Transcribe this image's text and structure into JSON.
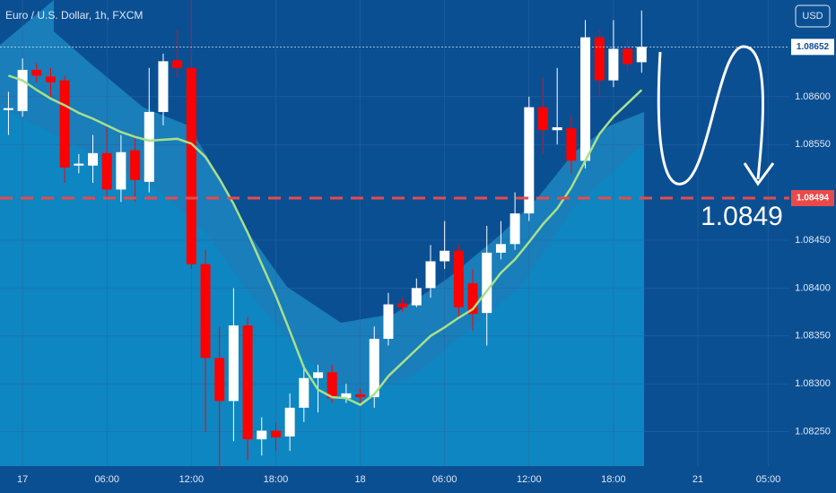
{
  "chart_data": {
    "type": "candlestick",
    "title": "Euro / U.S. Dollar, 1h, FXCM",
    "currency": "USD",
    "x": [
      -1,
      0,
      1,
      2,
      3,
      4,
      5,
      6,
      7,
      8,
      9,
      10,
      11,
      12,
      13,
      14,
      15,
      16,
      17,
      18,
      19,
      20,
      21,
      22,
      23,
      24,
      25,
      26,
      27,
      28,
      29,
      30,
      31,
      32,
      33,
      34,
      35,
      36,
      37,
      38,
      39,
      40,
      41,
      42,
      43,
      44
    ],
    "open": [
      1.08586,
      1.08585,
      1.08628,
      1.08621,
      1.08617,
      1.08528,
      1.08528,
      1.08541,
      1.08503,
      1.08544,
      1.08511,
      1.08584,
      1.08638,
      1.0863,
      1.08425,
      1.08327,
      1.08282,
      1.08361,
      1.08242,
      1.08251,
      1.08245,
      1.08275,
      1.08306,
      1.08312,
      1.08285,
      1.08289,
      1.08286,
      1.08347,
      1.08384,
      1.08382,
      1.084,
      1.08428,
      1.08439,
      1.08405,
      1.08374,
      1.08437,
      1.08446,
      1.08478,
      1.08589,
      1.08565,
      1.08567,
      1.08533,
      1.08662,
      1.08617,
      1.0865,
      1.08636
    ],
    "high": [
      1.08605,
      1.0864,
      1.08635,
      1.0863,
      1.08622,
      1.0854,
      1.0856,
      1.0857,
      1.0856,
      1.0856,
      1.0863,
      1.08645,
      1.0867,
      1.08701,
      1.0844,
      1.0836,
      1.084,
      1.0837,
      1.08265,
      1.0826,
      1.0829,
      1.0832,
      1.0832,
      1.0832,
      1.083,
      1.08295,
      1.0836,
      1.08395,
      1.0839,
      1.0841,
      1.08445,
      1.0847,
      1.08445,
      1.0842,
      1.08465,
      1.0847,
      1.085,
      1.086,
      1.0862,
      1.0863,
      1.0858,
      1.0868,
      1.0867,
      1.0868,
      1.0866,
      1.0869
    ],
    "low": [
      1.0856,
      1.08579,
      1.08615,
      1.086,
      1.0851,
      1.0852,
      1.0851,
      1.08495,
      1.0849,
      1.0849,
      1.085,
      1.0857,
      1.0862,
      1.0842,
      1.0825,
      1.0821,
      1.0824,
      1.0822,
      1.08225,
      1.0823,
      1.0823,
      1.0826,
      1.0827,
      1.0828,
      1.0828,
      1.0828,
      1.08275,
      1.0834,
      1.08375,
      1.0838,
      1.0839,
      1.0842,
      1.0837,
      1.08355,
      1.0834,
      1.0843,
      1.0844,
      1.0847,
      1.0854,
      1.0855,
      1.0852,
      1.08525,
      1.086,
      1.0861,
      1.08625,
      1.08625
    ],
    "close": [
      1.08588,
      1.08628,
      1.08622,
      1.08615,
      1.08526,
      1.0853,
      1.08541,
      1.08503,
      1.08542,
      1.08513,
      1.08584,
      1.08637,
      1.0863,
      1.08425,
      1.08327,
      1.08282,
      1.08361,
      1.08242,
      1.08251,
      1.08244,
      1.08275,
      1.08306,
      1.08312,
      1.08285,
      1.0829,
      1.08286,
      1.08347,
      1.08383,
      1.0838,
      1.084,
      1.08428,
      1.08439,
      1.0838,
      1.08373,
      1.08437,
      1.08446,
      1.08478,
      1.08589,
      1.08565,
      1.08568,
      1.08533,
      1.08662,
      1.08617,
      1.0865,
      1.08634,
      1.08652
    ],
    "up_color": "#ffffff",
    "down_color": "#ff0000",
    "ma": {
      "color": "#a8e08a",
      "values": [
        1.08622,
        1.08617,
        1.08607,
        1.08598,
        1.08591,
        1.08583,
        1.08577,
        1.0857,
        1.08563,
        1.08558,
        1.08554,
        1.08555,
        1.08556,
        1.08551,
        1.08537,
        1.08514,
        1.08488,
        1.08458,
        1.08425,
        1.08392,
        1.08355,
        1.08317,
        1.08294,
        1.08286,
        1.08285,
        1.08278,
        1.08289,
        1.08308,
        1.08322,
        1.08336,
        1.0835,
        1.08359,
        1.08369,
        1.08378,
        1.08397,
        1.08416,
        1.0843,
        1.08448,
        1.08467,
        1.08483,
        1.08505,
        1.08533,
        1.08561,
        1.08579,
        1.08593,
        1.08607
      ]
    },
    "xlim": [
      -1.6,
      54.5
    ],
    "xticks": [
      {
        "value": 0,
        "label": "17"
      },
      {
        "value": 6,
        "label": "06:00"
      },
      {
        "value": 12,
        "label": "12:00"
      },
      {
        "value": 18,
        "label": "18:00"
      },
      {
        "value": 24,
        "label": "18"
      },
      {
        "value": 30,
        "label": "06:00"
      },
      {
        "value": 36,
        "label": "12:00"
      },
      {
        "value": 42,
        "label": "18:00"
      },
      {
        "value": 48,
        "label": "21"
      },
      {
        "value": 53,
        "label": "05:00"
      }
    ],
    "ylim": [
      1.08214,
      1.08701
    ],
    "yticks": [
      {
        "value": 1.0825,
        "label": "1.08250"
      },
      {
        "value": 1.083,
        "label": "1.08300"
      },
      {
        "value": 1.0835,
        "label": "1.08350"
      },
      {
        "value": 1.084,
        "label": "1.08400"
      },
      {
        "value": 1.0845,
        "label": "1.08450"
      },
      {
        "value": 1.0855,
        "label": "1.08550"
      },
      {
        "value": 1.086,
        "label": "1.08600"
      }
    ],
    "price_lines": [
      {
        "value": 1.08652,
        "label": "1.08652",
        "color": "#ffffff"
      },
      {
        "value": 1.08494,
        "label": "1.08494",
        "color": "#e84a4a"
      }
    ],
    "annotation": "1.0849"
  }
}
